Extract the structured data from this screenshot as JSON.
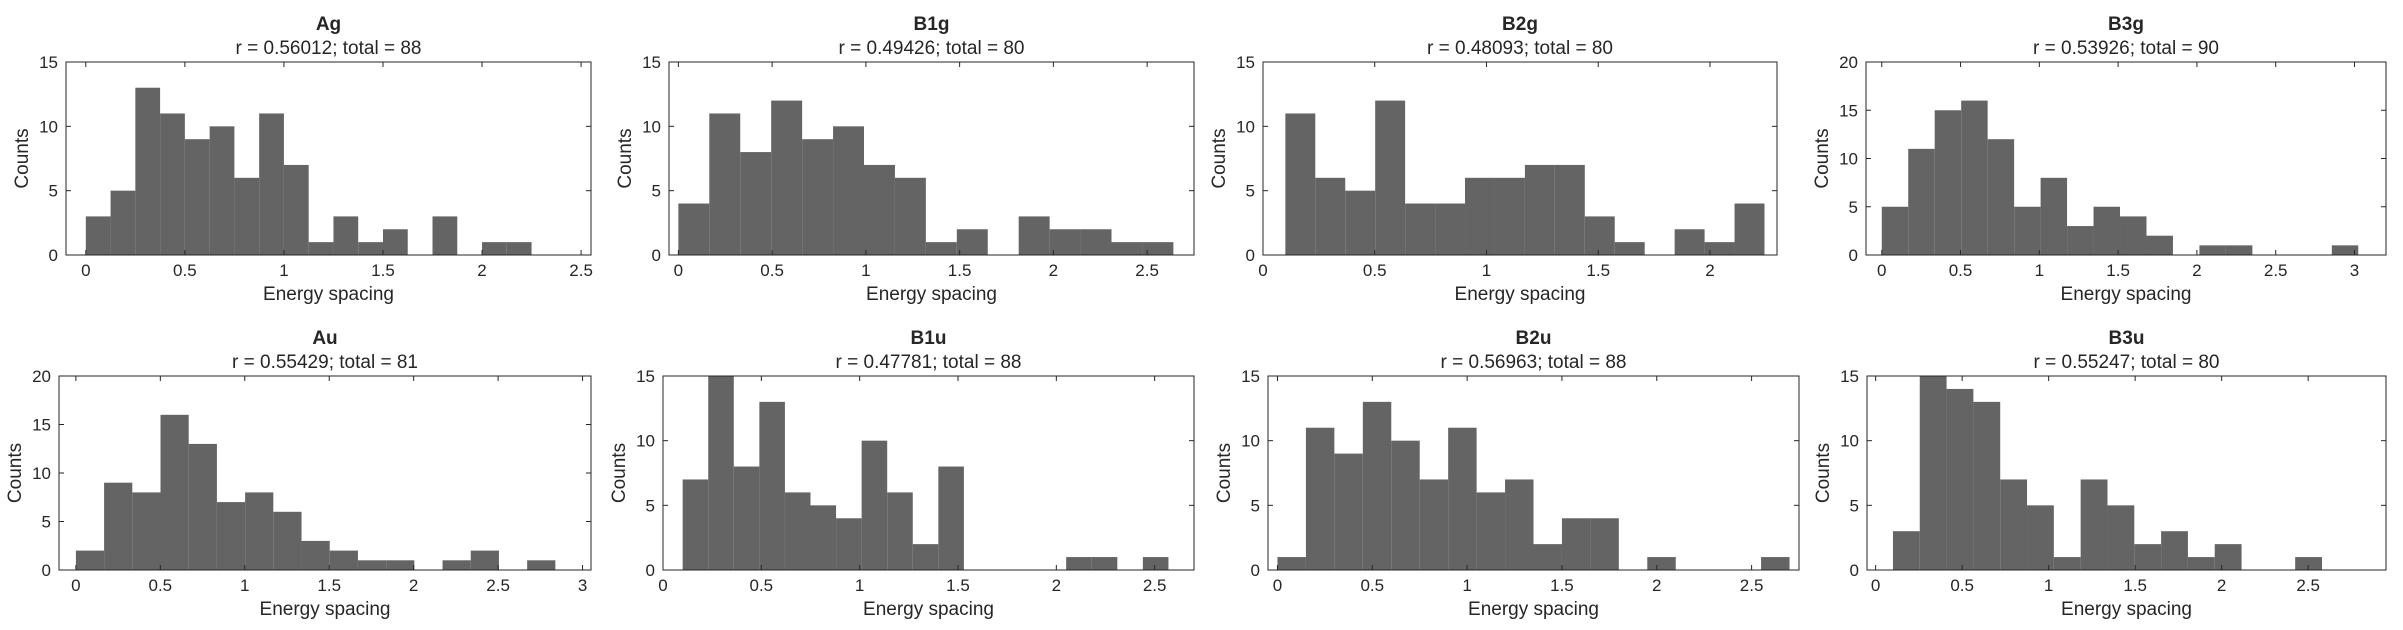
{
  "figure": {
    "background": "#ffffff",
    "bar_color": "#646464",
    "axis_color": "#262626"
  },
  "chart_data": [
    {
      "type": "bar",
      "title": "Ag",
      "subtitle": "r = 0.56012; total = 88",
      "xlabel": "Energy spacing",
      "ylabel": "Counts",
      "xlim": [
        -0.1,
        2.55
      ],
      "ylim": [
        0,
        15
      ],
      "xticks": [
        0,
        0.5,
        1,
        1.5,
        2,
        2.5
      ],
      "xtick_labels": [
        "0",
        "0.5",
        "1",
        "1.5",
        "2",
        "2.5"
      ],
      "yticks": [
        0,
        5,
        10,
        15
      ],
      "ytick_labels": [
        "0",
        "5",
        "10",
        "15"
      ],
      "bin_start": 0.0,
      "bin_width": 0.125,
      "values": [
        3,
        5,
        13,
        11,
        9,
        10,
        6,
        11,
        7,
        1,
        3,
        1,
        2,
        0,
        3,
        0,
        1,
        1
      ]
    },
    {
      "type": "bar",
      "title": "B1g",
      "subtitle": "r = 0.49426; total = 80",
      "xlabel": "Energy spacing",
      "ylabel": "Counts",
      "xlim": [
        -0.05,
        2.75
      ],
      "ylim": [
        0,
        15
      ],
      "xticks": [
        0,
        0.5,
        1,
        1.5,
        2,
        2.5
      ],
      "xtick_labels": [
        "0",
        "0.5",
        "1",
        "1.5",
        "2",
        "2.5"
      ],
      "yticks": [
        0,
        5,
        10,
        15
      ],
      "ytick_labels": [
        "0",
        "5",
        "10",
        "15"
      ],
      "bin_start": 0.0,
      "bin_width": 0.165,
      "values": [
        4,
        11,
        8,
        12,
        9,
        10,
        7,
        6,
        1,
        2,
        0,
        3,
        2,
        2,
        1,
        1
      ]
    },
    {
      "type": "bar",
      "title": "B2g",
      "subtitle": "r = 0.48093; total = 80",
      "xlabel": "Energy spacing",
      "ylabel": "Counts",
      "xlim": [
        0,
        2.3
      ],
      "ylim": [
        0,
        15
      ],
      "xticks": [
        0,
        0.5,
        1,
        1.5,
        2
      ],
      "xtick_labels": [
        "0",
        "0.5",
        "1",
        "1.5",
        "2"
      ],
      "yticks": [
        0,
        5,
        10,
        15
      ],
      "ytick_labels": [
        "0",
        "5",
        "10",
        "15"
      ],
      "bin_start": 0.1,
      "bin_width": 0.134,
      "values": [
        11,
        6,
        5,
        12,
        4,
        4,
        6,
        6,
        7,
        7,
        3,
        1,
        0,
        2,
        1,
        4
      ]
    },
    {
      "type": "bar",
      "title": "B3g",
      "subtitle": "r = 0.53926; total = 90",
      "xlabel": "Energy spacing",
      "ylabel": "Counts",
      "xlim": [
        -0.1,
        3.2
      ],
      "ylim": [
        0,
        20
      ],
      "xticks": [
        0,
        0.5,
        1,
        1.5,
        2,
        2.5,
        3
      ],
      "xtick_labels": [
        "0",
        "0.5",
        "1",
        "1.5",
        "2",
        "2.5",
        "3"
      ],
      "yticks": [
        0,
        5,
        10,
        15,
        20
      ],
      "ytick_labels": [
        "0",
        "5",
        "10",
        "15",
        "20"
      ],
      "bin_start": 0.0,
      "bin_width": 0.168,
      "values": [
        5,
        11,
        15,
        16,
        12,
        5,
        8,
        3,
        5,
        4,
        2,
        0,
        1,
        1,
        0,
        0,
        0,
        1
      ]
    },
    {
      "type": "bar",
      "title": "Au",
      "subtitle": "r = 0.55429; total = 81",
      "xlabel": "Energy spacing",
      "ylabel": "Counts",
      "xlim": [
        -0.1,
        3.05
      ],
      "ylim": [
        0,
        20
      ],
      "xticks": [
        0,
        0.5,
        1,
        1.5,
        2,
        2.5,
        3
      ],
      "xtick_labels": [
        "0",
        "0.5",
        "1",
        "1.5",
        "2",
        "2.5",
        "3"
      ],
      "yticks": [
        0,
        5,
        10,
        15,
        20
      ],
      "ytick_labels": [
        "0",
        "5",
        "10",
        "15",
        "20"
      ],
      "bin_start": 0.0,
      "bin_width": 0.167,
      "values": [
        2,
        9,
        8,
        16,
        13,
        7,
        8,
        6,
        3,
        2,
        1,
        1,
        0,
        1,
        2,
        0,
        1
      ]
    },
    {
      "type": "bar",
      "title": "B1u",
      "subtitle": "r = 0.47781; total = 88",
      "xlabel": "Energy spacing",
      "ylabel": "Counts",
      "xlim": [
        0,
        2.7
      ],
      "ylim": [
        0,
        15
      ],
      "xticks": [
        0,
        0.5,
        1,
        1.5,
        2,
        2.5
      ],
      "xtick_labels": [
        "0",
        "0.5",
        "1",
        "1.5",
        "2",
        "2.5"
      ],
      "yticks": [
        0,
        5,
        10,
        15
      ],
      "ytick_labels": [
        "0",
        "5",
        "10",
        "15"
      ],
      "bin_start": 0.1,
      "bin_width": 0.13,
      "values": [
        7,
        15,
        8,
        13,
        6,
        5,
        4,
        10,
        6,
        2,
        8,
        0,
        0,
        0,
        0,
        1,
        1,
        0,
        1
      ]
    },
    {
      "type": "bar",
      "title": "B2u",
      "subtitle": "r = 0.56963; total = 88",
      "xlabel": "Energy spacing",
      "ylabel": "Counts",
      "xlim": [
        -0.05,
        2.75
      ],
      "ylim": [
        0,
        15
      ],
      "xticks": [
        0,
        0.5,
        1,
        1.5,
        2,
        2.5
      ],
      "xtick_labels": [
        "0",
        "0.5",
        "1",
        "1.5",
        "2",
        "2.5"
      ],
      "yticks": [
        0,
        5,
        10,
        15
      ],
      "ytick_labels": [
        "0",
        "5",
        "10",
        "15"
      ],
      "bin_start": 0.0,
      "bin_width": 0.15,
      "values": [
        1,
        11,
        9,
        13,
        10,
        7,
        11,
        6,
        7,
        2,
        4,
        4,
        0,
        1,
        0,
        0,
        0,
        1
      ]
    },
    {
      "type": "bar",
      "title": "B3u",
      "subtitle": "r = 0.55247; total = 80",
      "xlabel": "Energy spacing",
      "ylabel": "Counts",
      "xlim": [
        -0.05,
        2.95
      ],
      "ylim": [
        0,
        15
      ],
      "xticks": [
        0,
        0.5,
        1,
        1.5,
        2,
        2.5
      ],
      "xtick_labels": [
        "0",
        "0.5",
        "1",
        "1.5",
        "2",
        "2.5"
      ],
      "yticks": [
        0,
        5,
        10,
        15
      ],
      "ytick_labels": [
        "0",
        "5",
        "10",
        "15"
      ],
      "bin_start": 0.1,
      "bin_width": 0.155,
      "values": [
        3,
        15,
        14,
        13,
        7,
        5,
        1,
        7,
        5,
        2,
        3,
        1,
        2,
        0,
        0,
        1
      ]
    }
  ]
}
